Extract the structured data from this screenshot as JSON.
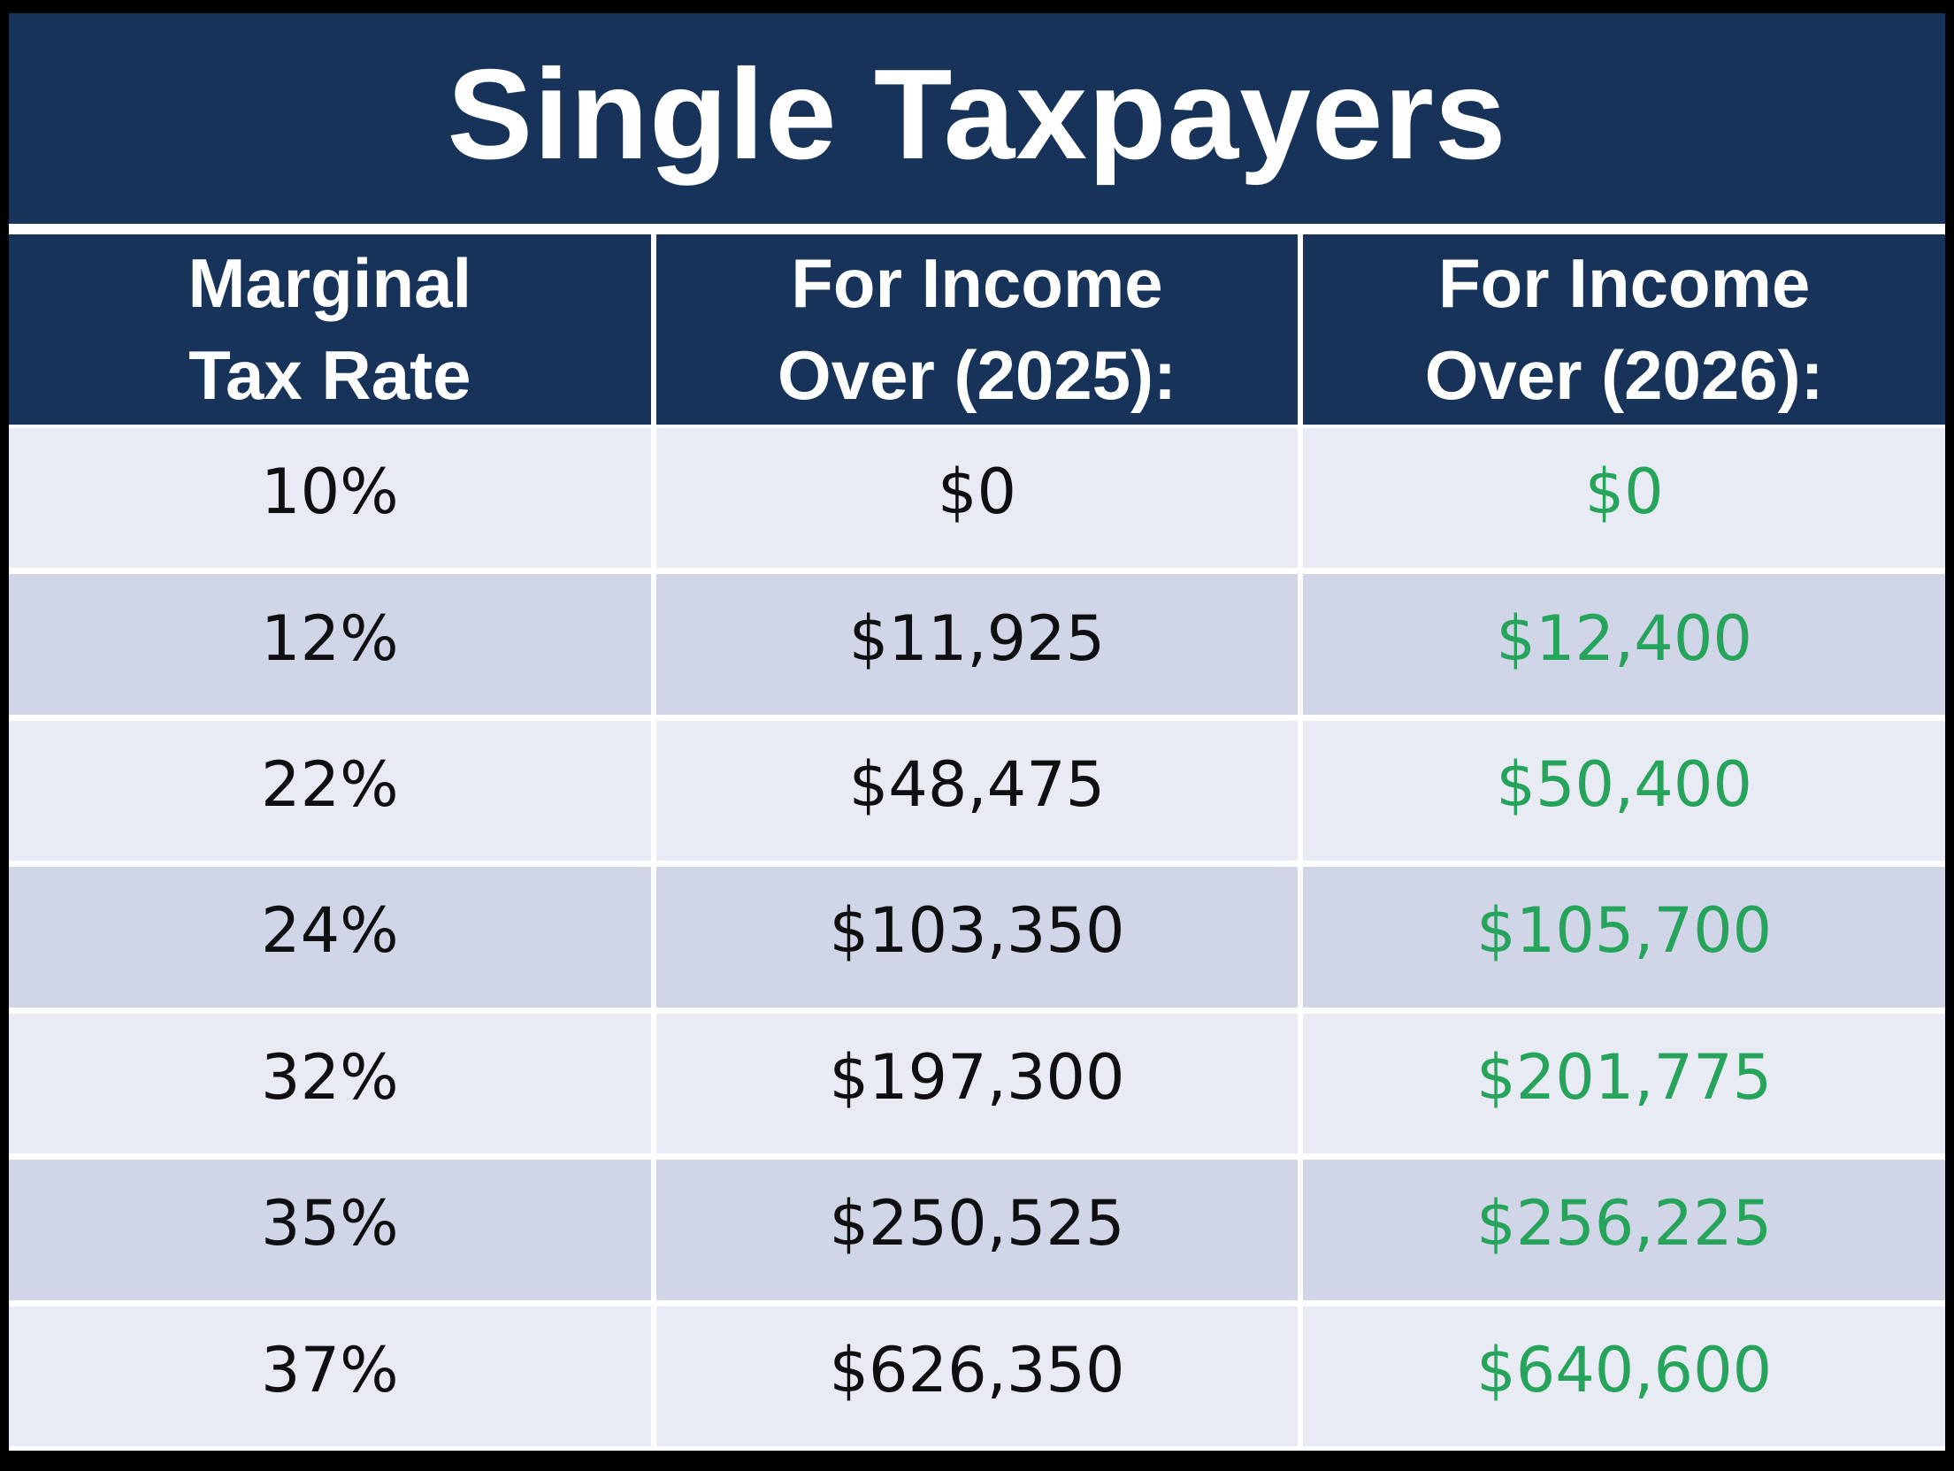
{
  "title": "Single Taxpayers",
  "columns": [
    {
      "label": "Marginal\nTax Rate"
    },
    {
      "label": "For Income\nOver (2025):"
    },
    {
      "label": "For Income\nOver (2026):"
    }
  ],
  "rows": [
    {
      "rate": "10%",
      "income_2025": "$0",
      "income_2026": "$0"
    },
    {
      "rate": "12%",
      "income_2025": "$11,925",
      "income_2026": "$12,400"
    },
    {
      "rate": "22%",
      "income_2025": "$48,475",
      "income_2026": "$50,400"
    },
    {
      "rate": "24%",
      "income_2025": "$103,350",
      "income_2026": "$105,700"
    },
    {
      "rate": "32%",
      "income_2025": "$197,300",
      "income_2026": "$201,775"
    },
    {
      "rate": "35%",
      "income_2025": "$250,525",
      "income_2026": "$256,225"
    },
    {
      "rate": "37%",
      "income_2025": "$626,350",
      "income_2026": "$640,600"
    }
  ],
  "colors": {
    "page-bg": "#000000",
    "navy": "#17335A",
    "row-light": "#E8EAF4",
    "row-dark": "#D0D5E8",
    "green": "#27A45B",
    "text-dark": "#0F0F12",
    "white": "#FFFFFF"
  },
  "chart_data": {
    "type": "table",
    "title": "Single Taxpayers",
    "column_headers": [
      "Marginal Tax Rate",
      "For Income Over (2025):",
      "For Income Over (2026):"
    ],
    "rows": [
      {
        "marginal_tax_rate_percent": 10,
        "income_over_2025": 0,
        "income_over_2026": 0
      },
      {
        "marginal_tax_rate_percent": 12,
        "income_over_2025": 11925,
        "income_over_2026": 12400
      },
      {
        "marginal_tax_rate_percent": 22,
        "income_over_2025": 48475,
        "income_over_2026": 50400
      },
      {
        "marginal_tax_rate_percent": 24,
        "income_over_2025": 103350,
        "income_over_2026": 105700
      },
      {
        "marginal_tax_rate_percent": 32,
        "income_over_2025": 197300,
        "income_over_2026": 201775
      },
      {
        "marginal_tax_rate_percent": 35,
        "income_over_2025": 250525,
        "income_over_2026": 256225
      },
      {
        "marginal_tax_rate_percent": 37,
        "income_over_2025": 626350,
        "income_over_2026": 640600
      }
    ],
    "notes": "2026 column values rendered in green; alternating lavender row stripes; dark navy header band and title band on black background"
  }
}
